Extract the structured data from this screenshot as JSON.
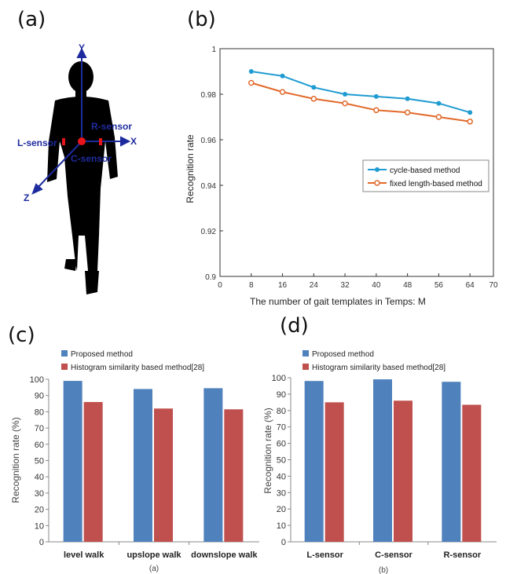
{
  "panel_labels": {
    "a": "(a)",
    "b": "(b)",
    "c": "(c)",
    "d": "(d)"
  },
  "figure_a": {
    "axis_labels": {
      "x": "X",
      "y": "Y",
      "z": "Z"
    },
    "sensor_labels": {
      "left": "L-sensor",
      "right": "R-sensor",
      "center": "C-sensor"
    },
    "colors": {
      "silhouette": "#000000",
      "axes": "#1e2b9e",
      "sensor": "#e8141b"
    }
  },
  "chart_data": [
    {
      "type": "line",
      "title": "",
      "xlabel": "The number of gait templates in Temps: M",
      "ylabel": "Recognition rate",
      "xlim": [
        0,
        70
      ],
      "ylim": [
        0.9,
        1
      ],
      "xticks": [
        "0",
        "8",
        "16",
        "24",
        "32",
        "40",
        "48",
        "56",
        "64",
        "70"
      ],
      "yticks": [
        "0.9",
        "0.92",
        "0.94",
        "0.96",
        "0.98",
        "1"
      ],
      "legend_position": "inside-right",
      "grid": false,
      "x": [
        8,
        16,
        24,
        32,
        40,
        48,
        56,
        64
      ],
      "series": [
        {
          "name": "cycle-based method",
          "color": "#1f9bd1",
          "values": [
            0.99,
            0.988,
            0.983,
            0.98,
            0.979,
            0.978,
            0.976,
            0.972
          ]
        },
        {
          "name": "fixed length-based method",
          "color": "#e1692a",
          "values": [
            0.985,
            0.981,
            0.978,
            0.976,
            0.973,
            0.972,
            0.97,
            0.968
          ]
        }
      ]
    },
    {
      "type": "bar",
      "title": "",
      "caption": "(a)",
      "xlabel": "",
      "ylabel": "Recognition rate (%)",
      "ylim": [
        0,
        100
      ],
      "yticks": [
        "0",
        "10",
        "20",
        "30",
        "40",
        "50",
        "60",
        "70",
        "80",
        "90",
        "100"
      ],
      "legend_position": "top",
      "grid": false,
      "categories": [
        "level walk",
        "upslope walk",
        "downslope walk"
      ],
      "series": [
        {
          "name": "Proposed method",
          "color": "#4f81bd",
          "values": [
            99,
            94,
            94.5
          ]
        },
        {
          "name": "Histogram similarity based method[28]",
          "color": "#c0504d",
          "values": [
            86,
            82,
            81.5
          ]
        }
      ]
    },
    {
      "type": "bar",
      "title": "",
      "caption": "(b)",
      "xlabel": "",
      "ylabel": "Recognition rate (%)",
      "ylim": [
        0,
        100
      ],
      "yticks": [
        "0",
        "10",
        "20",
        "30",
        "40",
        "50",
        "60",
        "70",
        "80",
        "90",
        "100"
      ],
      "legend_position": "top",
      "grid": false,
      "categories": [
        "L-sensor",
        "C-sensor",
        "R-sensor"
      ],
      "series": [
        {
          "name": "Proposed method",
          "color": "#4f81bd",
          "values": [
            98,
            99,
            97.5
          ]
        },
        {
          "name": "Histogram similarity based method[28]",
          "color": "#c0504d",
          "values": [
            85,
            86,
            83.5
          ]
        }
      ]
    }
  ]
}
